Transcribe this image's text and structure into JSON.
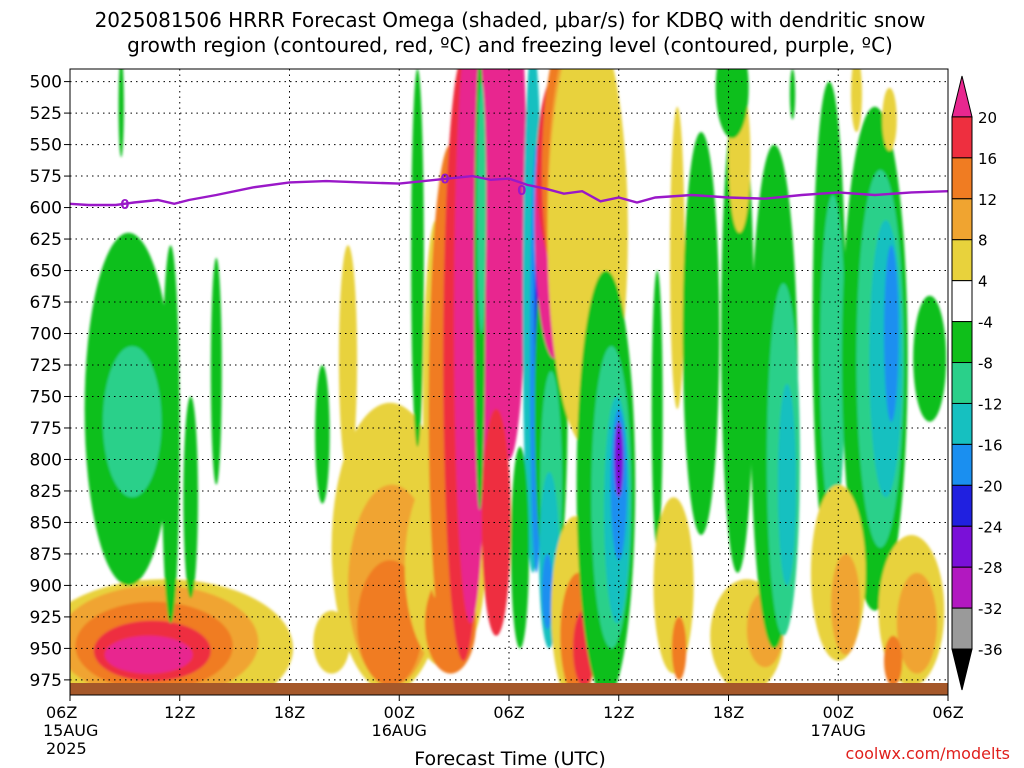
{
  "chart_data": {
    "type": "heatmap",
    "title": "2025081506 HRRR Forecast Omega (shaded, μbar/s) for KDBQ with dendritic snow growth region (contoured, red, ºC) and freezing level (contoured, purple, ºC)",
    "title_line1": "2025081506 HRRR Forecast Omega (shaded, μbar/s) for KDBQ with dendritic snow",
    "title_line2": "growth region (contoured, red, ºC) and freezing level (contoured, purple, ºC)",
    "xlabel": "Forecast Time (UTC)",
    "ylabel": "",
    "source_label": "coolwx.com/modelts",
    "x_ticks": [
      {
        "line1": "06Z",
        "line2": "15AUG",
        "line3": "2025"
      },
      {
        "line1": "12Z"
      },
      {
        "line1": "18Z"
      },
      {
        "line1": "00Z",
        "line2": "16AUG"
      },
      {
        "line1": "06Z"
      },
      {
        "line1": "12Z"
      },
      {
        "line1": "18Z"
      },
      {
        "line1": "00Z",
        "line2": "17AUG"
      },
      {
        "line1": "06Z"
      }
    ],
    "x_range_hours": [
      0,
      48
    ],
    "y_axis_pressure_mb": [
      500,
      525,
      550,
      575,
      600,
      625,
      650,
      675,
      700,
      725,
      750,
      775,
      800,
      825,
      850,
      875,
      900,
      925,
      950,
      975
    ],
    "y_range_mb": [
      490,
      987
    ],
    "grid": true,
    "colorbar": {
      "labels": [
        "20",
        "16",
        "12",
        "8",
        "4",
        "-4",
        "-8",
        "-12",
        "-16",
        "-20",
        "-24",
        "-28",
        "-32",
        "-36"
      ],
      "colors": [
        "#e8278f",
        "#ee2f3f",
        "#f07c22",
        "#f0a430",
        "#e8d23c",
        "#ffffff",
        "#0fbf1a",
        "#2ad08a",
        "#16c0c0",
        "#1a8ff0",
        "#2020e0",
        "#7a10d8",
        "#b218c0",
        "#9a9a9a",
        "#000000"
      ]
    },
    "freezing_level": {
      "label": "0",
      "color": "#9a18c8",
      "points_hours_mb": [
        [
          0,
          597
        ],
        [
          1,
          598
        ],
        [
          2.5,
          598
        ],
        [
          3.5,
          596
        ],
        [
          4.8,
          594
        ],
        [
          5.7,
          597
        ],
        [
          6.5,
          594
        ],
        [
          8,
          590
        ],
        [
          10,
          584
        ],
        [
          12,
          580
        ],
        [
          14,
          579
        ],
        [
          16,
          580
        ],
        [
          18,
          581
        ],
        [
          20,
          578
        ],
        [
          22,
          575
        ],
        [
          23,
          578
        ],
        [
          24,
          577
        ],
        [
          25,
          582
        ],
        [
          26,
          585
        ],
        [
          27,
          589
        ],
        [
          28,
          587
        ],
        [
          29,
          595
        ],
        [
          30,
          592
        ],
        [
          31,
          596
        ],
        [
          32,
          592
        ],
        [
          34,
          590
        ],
        [
          36,
          592
        ],
        [
          38,
          593
        ],
        [
          40,
          590
        ],
        [
          42,
          588
        ],
        [
          44,
          590
        ],
        [
          46,
          588
        ],
        [
          48,
          587
        ]
      ]
    }
  }
}
